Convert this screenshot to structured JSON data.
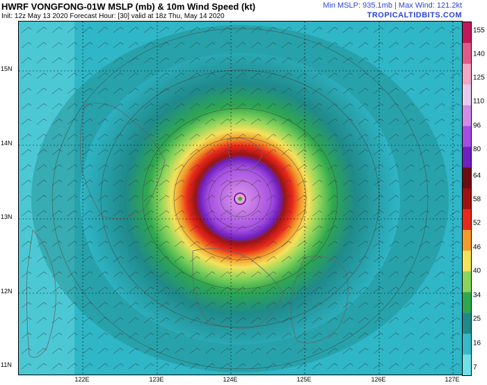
{
  "header": {
    "title": "HWRF VONGFONG-01W MSLP (mb) & 10m Wind Speed (kt)",
    "subtitle": "Init: 12z May 13 2020   Forecast Hour: [30]   valid at 18z Thu, May 14 2020",
    "stats": "Min MSLP: 935.1mb | Max Wind: 121.2kt",
    "site": "TROPICALTIDBITS.COM"
  },
  "map": {
    "lat_labels": [
      "15N",
      "14N",
      "13N",
      "12N",
      "11N"
    ],
    "lon_labels": [
      "122E",
      "123E",
      "124E",
      "125E",
      "126E",
      "127E"
    ],
    "storm_center": {
      "lon": 124.0,
      "lat": 13.25
    }
  },
  "colorbar": {
    "labels": [
      "155",
      "140",
      "125",
      "110",
      "96",
      "80",
      "64",
      "58",
      "52",
      "46",
      "40",
      "34",
      "25",
      "16",
      "7"
    ],
    "colors": [
      "#c2185b",
      "#e05a8a",
      "#f3a6c2",
      "#e9c9ef",
      "#d28be6",
      "#a54de2",
      "#7020c0",
      "#6a0e14",
      "#a01212",
      "#e8291b",
      "#f39b2a",
      "#f4e25b",
      "#8ad45b",
      "#2fa84f",
      "#1f8a8a",
      "#38b9c8",
      "#6fe1e6"
    ]
  }
}
